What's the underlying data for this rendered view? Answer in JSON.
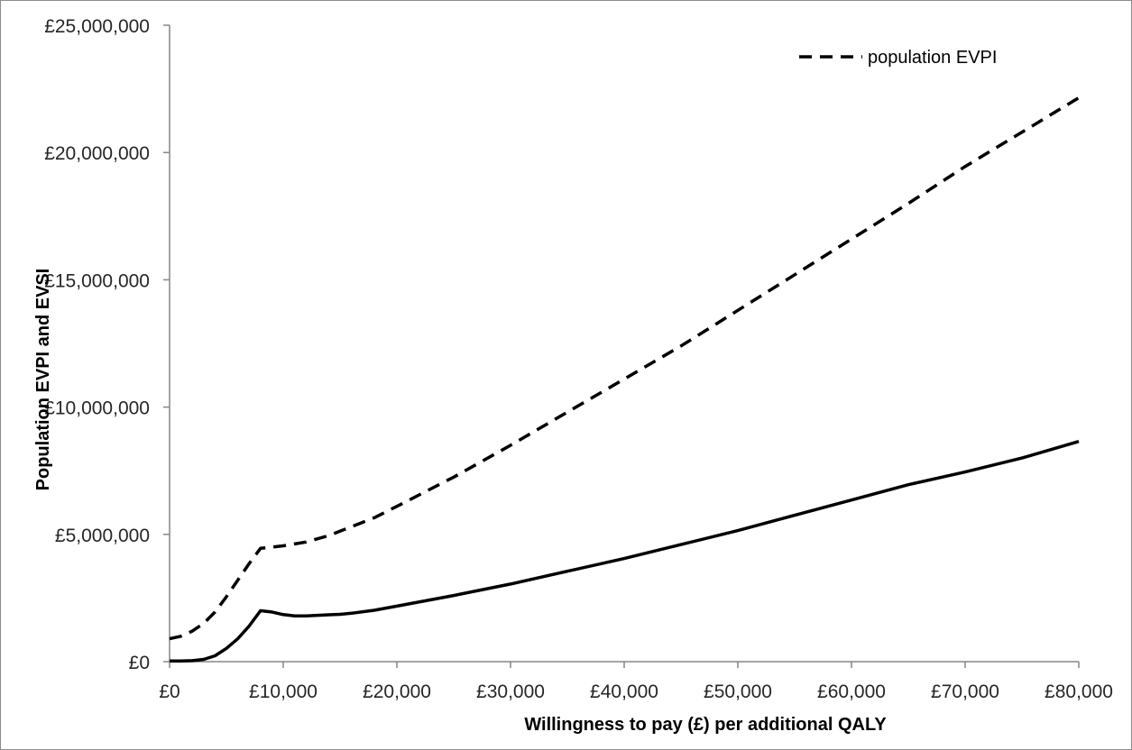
{
  "chart_data": {
    "type": "line",
    "title": "",
    "xlabel": "Willingness to pay (£) per additional QALY",
    "ylabel": "Population EVPI and EVSI",
    "xlim": [
      0,
      80000
    ],
    "ylim": [
      0,
      25000000
    ],
    "grid": false,
    "legend_position": "top-right",
    "x_ticks": [
      0,
      10000,
      20000,
      30000,
      40000,
      50000,
      60000,
      70000,
      80000
    ],
    "x_tick_labels": [
      "£0",
      "£10,000",
      "£20,000",
      "£30,000",
      "£40,000",
      "£50,000",
      "£60,000",
      "£70,000",
      "£80,000"
    ],
    "y_ticks": [
      0,
      5000000,
      10000000,
      15000000,
      20000000,
      25000000
    ],
    "y_tick_labels": [
      "£0",
      "£5,000,000",
      "£10,000,000",
      "£15,000,000",
      "£20,000,000",
      "£25,000,000"
    ],
    "series": [
      {
        "name": "population EVPI",
        "style": "dashed",
        "color": "#000000",
        "x": [
          0,
          1000,
          2000,
          3000,
          4000,
          5000,
          6000,
          7000,
          8000,
          9000,
          10000,
          12000,
          14000,
          16000,
          18000,
          20000,
          25000,
          30000,
          35000,
          40000,
          45000,
          50000,
          55000,
          60000,
          65000,
          70000,
          75000,
          80000
        ],
        "values": [
          900000,
          1000000,
          1200000,
          1500000,
          1950000,
          2550000,
          3200000,
          3850000,
          4450000,
          4500000,
          4550000,
          4700000,
          4950000,
          5300000,
          5650000,
          6100000,
          7250000,
          8500000,
          9800000,
          11100000,
          12400000,
          13800000,
          15200000,
          16600000,
          18000000,
          19450000,
          20800000,
          22150000
        ]
      },
      {
        "name": "",
        "style": "solid",
        "color": "#000000",
        "x": [
          0,
          1000,
          2000,
          3000,
          4000,
          5000,
          6000,
          7000,
          8000,
          9000,
          10000,
          11000,
          12000,
          13000,
          14000,
          15000,
          16000,
          18000,
          20000,
          25000,
          30000,
          35000,
          40000,
          45000,
          50000,
          55000,
          60000,
          65000,
          70000,
          75000,
          80000
        ],
        "values": [
          30000,
          30000,
          40000,
          90000,
          230000,
          520000,
          900000,
          1400000,
          2000000,
          1950000,
          1850000,
          1800000,
          1800000,
          1820000,
          1840000,
          1860000,
          1900000,
          2020000,
          2180000,
          2600000,
          3050000,
          3550000,
          4050000,
          4600000,
          5150000,
          5750000,
          6350000,
          6950000,
          7450000,
          8000000,
          8650000
        ]
      }
    ]
  }
}
